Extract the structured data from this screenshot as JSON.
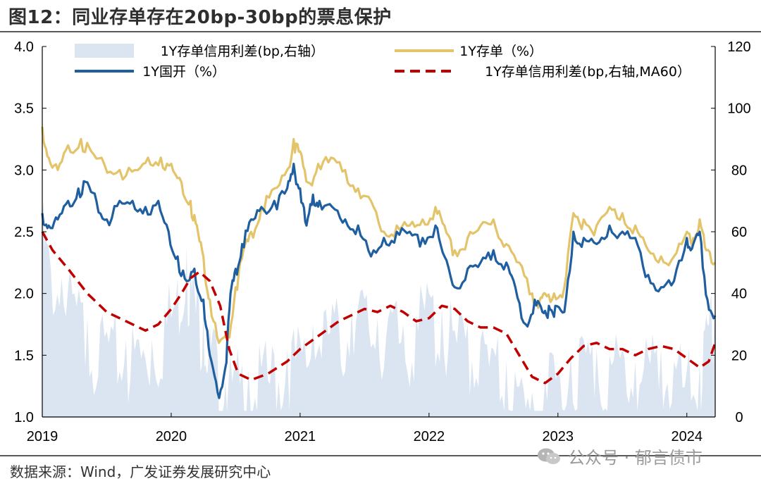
{
  "header": {
    "title": "图12：同业存单存在20bp-30bp的票息保护"
  },
  "footer": {
    "source": "数据来源：Wind，广发证券发展研究中心"
  },
  "watermark": {
    "text": "公众号 · 郁言债市",
    "icon": "wechat-icon"
  },
  "colors": {
    "spread_fill": "#dbe5f1",
    "cd_line": "#e3c46b",
    "cdb_line": "#1f5fa0",
    "ma_line": "#c00000"
  },
  "chart_data": {
    "type": "line",
    "title": "图12：同业存单存在20bp-30bp的票息保护",
    "xlabel": "",
    "ylabel": "",
    "y2label": "",
    "x_ticks": [
      "2019",
      "2020",
      "2021",
      "2022",
      "2023",
      "2024"
    ],
    "x_range": [
      2019.0,
      2024.22
    ],
    "ylim": [
      1.0,
      4.0
    ],
    "y_ticks": [
      "1.0",
      "1.5",
      "2.0",
      "2.5",
      "3.0",
      "3.5",
      "4.0"
    ],
    "y2lim": [
      0,
      120
    ],
    "y2_ticks": [
      "0",
      "20",
      "40",
      "60",
      "80",
      "100",
      "120"
    ],
    "legend_position": "top",
    "legend": [
      {
        "label": "1Y存单信用利差(bp,右轴）",
        "style": "area"
      },
      {
        "label": "1Y存单（%）",
        "style": "line"
      },
      {
        "label": "1Y国开（%）",
        "style": "line"
      },
      {
        "label": "1Y存单信用利差(bp,右轴,MA60）",
        "style": "dashed"
      }
    ],
    "series": [
      {
        "name": "1Y存单（%）",
        "axis": "left",
        "x": [
          2019.0,
          2019.05,
          2019.12,
          2019.2,
          2019.3,
          2019.38,
          2019.48,
          2019.6,
          2019.72,
          2019.82,
          2019.92,
          2020.0,
          2020.08,
          2020.15,
          2020.2,
          2020.25,
          2020.3,
          2020.37,
          2020.44,
          2020.5,
          2020.56,
          2020.62,
          2020.7,
          2020.8,
          2020.9,
          2020.95,
          2021.0,
          2021.06,
          2021.14,
          2021.24,
          2021.35,
          2021.45,
          2021.55,
          2021.65,
          2021.75,
          2021.85,
          2021.95,
          2022.05,
          2022.12,
          2022.2,
          2022.3,
          2022.4,
          2022.5,
          2022.6,
          2022.7,
          2022.8,
          2022.86,
          2022.9,
          2022.97,
          2023.05,
          2023.12,
          2023.2,
          2023.3,
          2023.4,
          2023.5,
          2023.6,
          2023.7,
          2023.8,
          2023.9,
          2024.0,
          2024.05,
          2024.1,
          2024.15,
          2024.22
        ],
        "values": [
          3.35,
          3.1,
          3.0,
          3.2,
          3.25,
          3.15,
          3.05,
          3.0,
          3.0,
          3.1,
          3.1,
          3.05,
          2.9,
          2.75,
          2.55,
          2.3,
          1.95,
          1.6,
          1.65,
          2.05,
          2.35,
          2.5,
          2.7,
          2.85,
          3.0,
          3.25,
          3.15,
          2.9,
          3.05,
          3.1,
          3.0,
          2.85,
          2.75,
          2.5,
          2.55,
          2.55,
          2.6,
          2.7,
          2.55,
          2.35,
          2.45,
          2.55,
          2.6,
          2.4,
          2.25,
          2.0,
          1.95,
          2.0,
          2.0,
          2.05,
          2.65,
          2.6,
          2.55,
          2.7,
          2.65,
          2.55,
          2.35,
          2.3,
          2.3,
          2.5,
          2.45,
          2.6,
          2.35,
          2.25
        ]
      },
      {
        "name": "1Y国开（%）",
        "axis": "left",
        "x": [
          2019.0,
          2019.05,
          2019.12,
          2019.2,
          2019.28,
          2019.35,
          2019.42,
          2019.5,
          2019.6,
          2019.7,
          2019.8,
          2019.9,
          2019.98,
          2020.05,
          2020.12,
          2020.18,
          2020.25,
          2020.3,
          2020.36,
          2020.42,
          2020.46,
          2020.5,
          2020.55,
          2020.62,
          2020.7,
          2020.8,
          2020.9,
          2020.95,
          2021.0,
          2021.05,
          2021.1,
          2021.15,
          2021.25,
          2021.35,
          2021.45,
          2021.55,
          2021.65,
          2021.75,
          2021.85,
          2021.95,
          2022.05,
          2022.12,
          2022.2,
          2022.3,
          2022.4,
          2022.5,
          2022.6,
          2022.67,
          2022.75,
          2022.82,
          2022.88,
          2022.93,
          2022.98,
          2023.05,
          2023.12,
          2023.2,
          2023.3,
          2023.4,
          2023.5,
          2023.6,
          2023.7,
          2023.8,
          2023.9,
          2024.0,
          2024.05,
          2024.1,
          2024.16,
          2024.22
        ],
        "values": [
          2.65,
          2.55,
          2.6,
          2.75,
          2.85,
          2.9,
          2.75,
          2.6,
          2.75,
          2.75,
          2.7,
          2.75,
          2.5,
          2.3,
          2.1,
          2.2,
          1.95,
          1.5,
          1.2,
          1.4,
          2.0,
          2.2,
          2.4,
          2.6,
          2.7,
          2.75,
          2.85,
          3.05,
          2.85,
          2.55,
          2.8,
          2.75,
          2.7,
          2.6,
          2.55,
          2.3,
          2.45,
          2.5,
          2.5,
          2.45,
          2.55,
          2.3,
          2.05,
          2.2,
          2.25,
          2.35,
          2.25,
          2.05,
          1.75,
          1.95,
          1.85,
          1.9,
          1.9,
          1.85,
          2.5,
          2.45,
          2.4,
          2.55,
          2.5,
          2.45,
          2.15,
          2.05,
          2.1,
          2.45,
          2.4,
          2.5,
          1.95,
          1.82
        ]
      },
      {
        "name": "1Y存单信用利差(bp,右轴）",
        "axis": "right",
        "x": [
          2019.0,
          2019.05,
          2019.15,
          2019.25,
          2019.35,
          2019.45,
          2019.55,
          2019.65,
          2019.75,
          2019.85,
          2019.95,
          2020.05,
          2020.12,
          2020.18,
          2020.25,
          2020.3,
          2020.36,
          2020.42,
          2020.5,
          2020.6,
          2020.7,
          2020.8,
          2020.9,
          2021.0,
          2021.1,
          2021.2,
          2021.3,
          2021.4,
          2021.5,
          2021.6,
          2021.7,
          2021.8,
          2021.9,
          2022.0,
          2022.1,
          2022.2,
          2022.3,
          2022.4,
          2022.5,
          2022.6,
          2022.7,
          2022.8,
          2022.9,
          2023.0,
          2023.1,
          2023.2,
          2023.3,
          2023.4,
          2023.5,
          2023.6,
          2023.7,
          2023.8,
          2023.9,
          2024.0,
          2024.1,
          2024.16,
          2024.22
        ],
        "values": [
          65,
          55,
          45,
          40,
          32,
          30,
          28,
          25,
          25,
          25,
          35,
          45,
          55,
          42,
          35,
          30,
          20,
          12,
          15,
          15,
          16,
          20,
          22,
          25,
          30,
          35,
          32,
          35,
          38,
          32,
          35,
          30,
          33,
          40,
          35,
          28,
          30,
          25,
          22,
          18,
          10,
          8,
          12,
          15,
          20,
          25,
          22,
          20,
          22,
          18,
          20,
          22,
          18,
          15,
          18,
          30,
          38
        ]
      },
      {
        "name": "1Y存单信用利差(bp,右轴,MA60）",
        "axis": "right",
        "x": [
          2019.0,
          2019.08,
          2019.2,
          2019.35,
          2019.5,
          2019.65,
          2019.8,
          2019.9,
          2020.0,
          2020.08,
          2020.15,
          2020.22,
          2020.3,
          2020.38,
          2020.45,
          2020.52,
          2020.62,
          2020.75,
          2020.9,
          2021.0,
          2021.1,
          2021.2,
          2021.3,
          2021.4,
          2021.5,
          2021.6,
          2021.7,
          2021.8,
          2021.9,
          2022.0,
          2022.1,
          2022.2,
          2022.3,
          2022.4,
          2022.5,
          2022.6,
          2022.7,
          2022.8,
          2022.9,
          2023.0,
          2023.1,
          2023.2,
          2023.3,
          2023.4,
          2023.5,
          2023.6,
          2023.7,
          2023.8,
          2023.9,
          2024.0,
          2024.1,
          2024.17,
          2024.22
        ],
        "values": [
          60,
          54,
          48,
          40,
          34,
          31,
          28,
          30,
          35,
          40,
          45,
          47,
          44,
          36,
          22,
          14,
          12,
          14,
          18,
          22,
          25,
          28,
          31,
          33,
          35,
          34,
          36,
          34,
          31,
          32,
          36,
          35,
          31,
          29,
          29,
          27,
          20,
          13,
          11,
          14,
          19,
          23,
          24,
          22,
          22,
          20,
          22,
          23,
          22,
          19,
          16,
          18,
          24
        ]
      }
    ]
  }
}
